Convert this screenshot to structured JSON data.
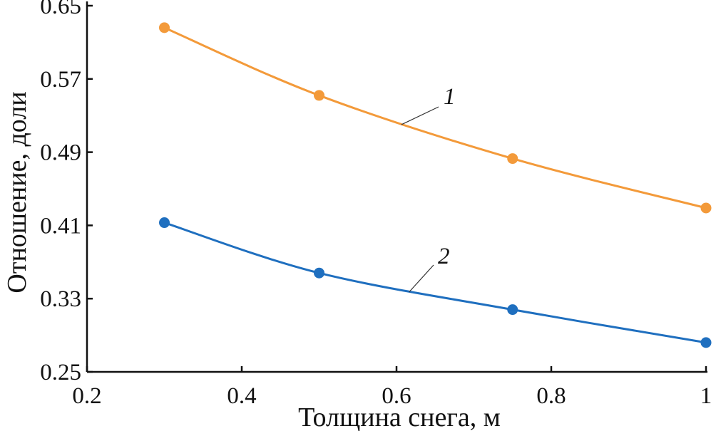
{
  "chart_data": {
    "type": "line",
    "title": "",
    "xlabel": "Толщина снега, м",
    "ylabel": "Отношение, доли",
    "xlim": [
      0.2,
      1.0
    ],
    "ylim": [
      0.25,
      0.65
    ],
    "xticks": [
      0.2,
      0.4,
      0.6,
      0.8,
      1.0
    ],
    "xtick_labels": [
      "0.2",
      "0.4",
      "0.6",
      "0.8",
      "1"
    ],
    "yticks": [
      0.25,
      0.33,
      0.41,
      0.49,
      0.57,
      0.65
    ],
    "ytick_labels": [
      "0.25",
      "0.33",
      "0.41",
      "0.49",
      "0.57",
      "0.65"
    ],
    "grid": false,
    "legend": "none",
    "series": [
      {
        "name": "1",
        "color": "#F39A3A",
        "x": [
          0.3,
          0.5,
          0.75,
          1.0
        ],
        "y": [
          0.626,
          0.552,
          0.483,
          0.429
        ]
      },
      {
        "name": "2",
        "color": "#1F6FBF",
        "x": [
          0.3,
          0.5,
          0.75,
          1.0
        ],
        "y": [
          0.413,
          0.358,
          0.318,
          0.282
        ]
      }
    ]
  }
}
